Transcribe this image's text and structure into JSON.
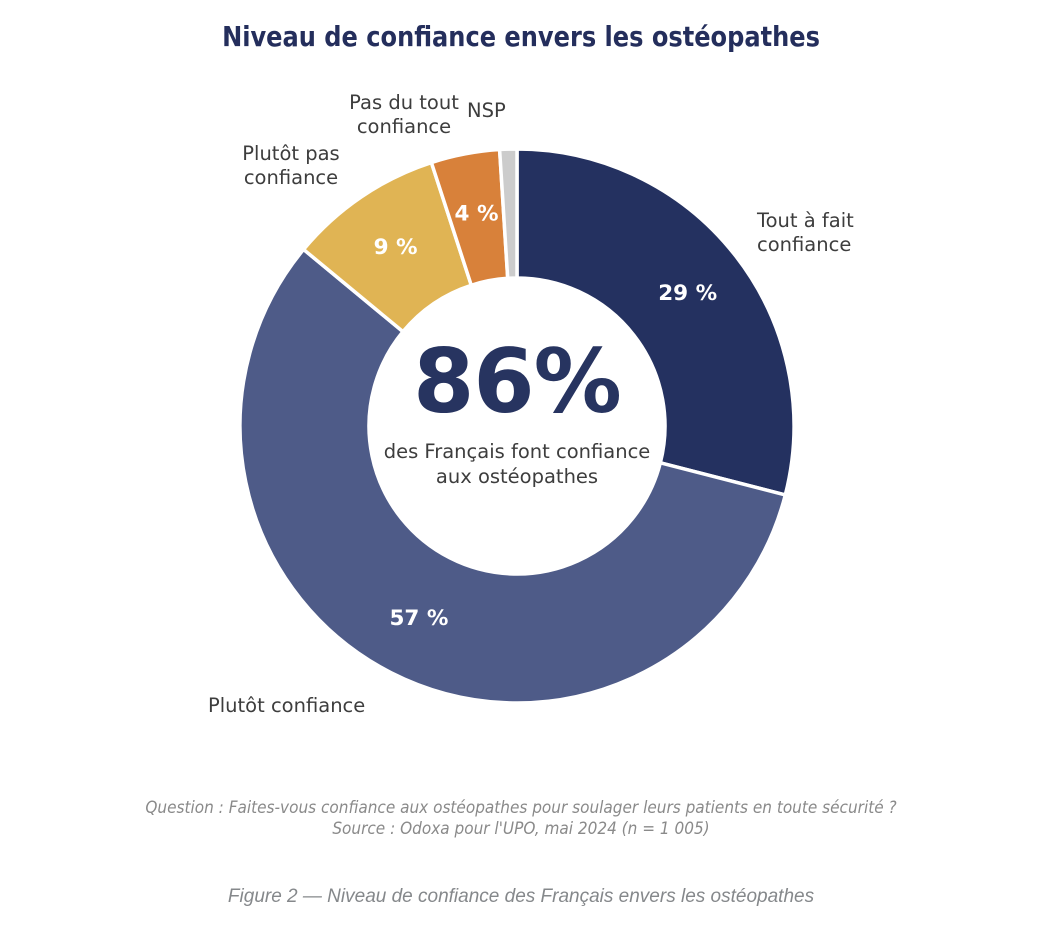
{
  "title": "Niveau de confiance envers les ostéopathes",
  "chart_data": {
    "type": "pie",
    "subtype": "donut",
    "title": "Niveau de confiance envers les ostéopathes",
    "direction": "clockwise",
    "start_angle_deg": 0,
    "legend_position": "outside-labels",
    "segments": [
      {
        "label": "Tout à fait confiance",
        "label_display": "Tout à fait\nconfiance",
        "value": 29,
        "value_label": "29 %",
        "color": "#243160",
        "show_value": true
      },
      {
        "label": "Plutôt confiance",
        "label_display": "Plutôt confiance",
        "value": 57,
        "value_label": "57 %",
        "color": "#4e5b88",
        "show_value": true
      },
      {
        "label": "Plutôt pas confiance",
        "label_display": "Plutôt pas\nconfiance",
        "value": 9,
        "value_label": "9 %",
        "color": "#e0b454",
        "show_value": true
      },
      {
        "label": "Pas du tout confiance",
        "label_display": "Pas du tout\nconfiance",
        "value": 4,
        "value_label": "4 %",
        "color": "#d8813a",
        "show_value": true
      },
      {
        "label": "NSP",
        "label_display": "NSP",
        "value": 1,
        "value_label": "",
        "color": "#cccccc",
        "show_value": false
      }
    ],
    "center": {
      "headline": "86%",
      "subtext": "des Français font confiance\naux ostéopathes"
    }
  },
  "footer": {
    "question": "Question : Faites-vous confiance aux ostéopathes pour soulager leurs patients en toute sécurité ?",
    "source": "Source : Odoxa pour l'UPO, mai 2024 (n = 1 005)"
  },
  "caption": "Figure 2 — Niveau de confiance des Français envers les ostéopathes",
  "colors": {
    "background": "#ffffff",
    "title_text": "#242e5c",
    "center_headline_text": "#273460",
    "outer_label_text": "#3d3d3d",
    "value_label_text": "#ffffff",
    "footer_text": "#8a8a8a",
    "caption_text": "#85888b",
    "segment_separator": "#ffffff"
  }
}
